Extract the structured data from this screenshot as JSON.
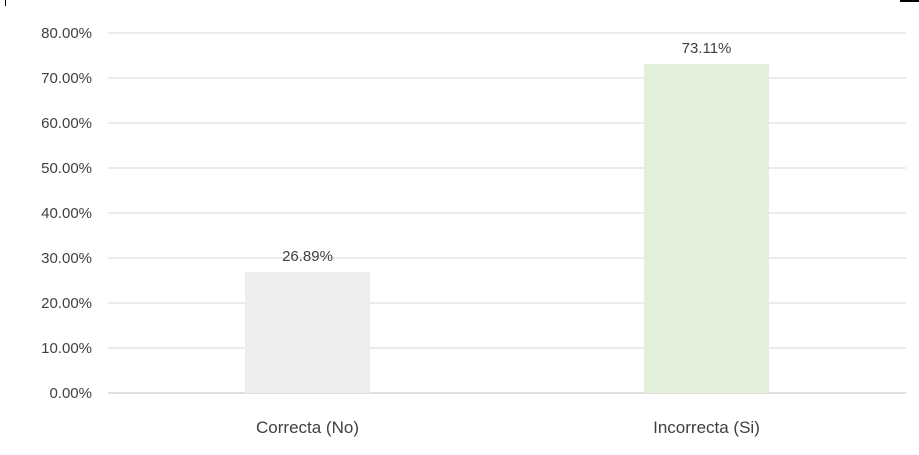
{
  "chart_data": {
    "type": "bar",
    "categories": [
      "Correcta (No)",
      "Incorrecta (Si)"
    ],
    "values": [
      26.89,
      73.11
    ],
    "value_labels": [
      "26.89%",
      "73.11%"
    ],
    "bar_colors": [
      "#ededed",
      "#e2efd9"
    ],
    "title": "",
    "xlabel": "",
    "ylabel": "",
    "ylim": [
      0,
      80
    ],
    "y_ticks": [
      0,
      10,
      20,
      30,
      40,
      50,
      60,
      70,
      80
    ],
    "y_tick_labels": [
      "0.00%",
      "10.00%",
      "20.00%",
      "30.00%",
      "40.00%",
      "50.00%",
      "60.00%",
      "70.00%",
      "80.00%"
    ],
    "grid": true,
    "legend": "none"
  },
  "colors": {
    "grid": "#d9d9d9",
    "axis": "#bfbfbf",
    "text": "#404040"
  }
}
